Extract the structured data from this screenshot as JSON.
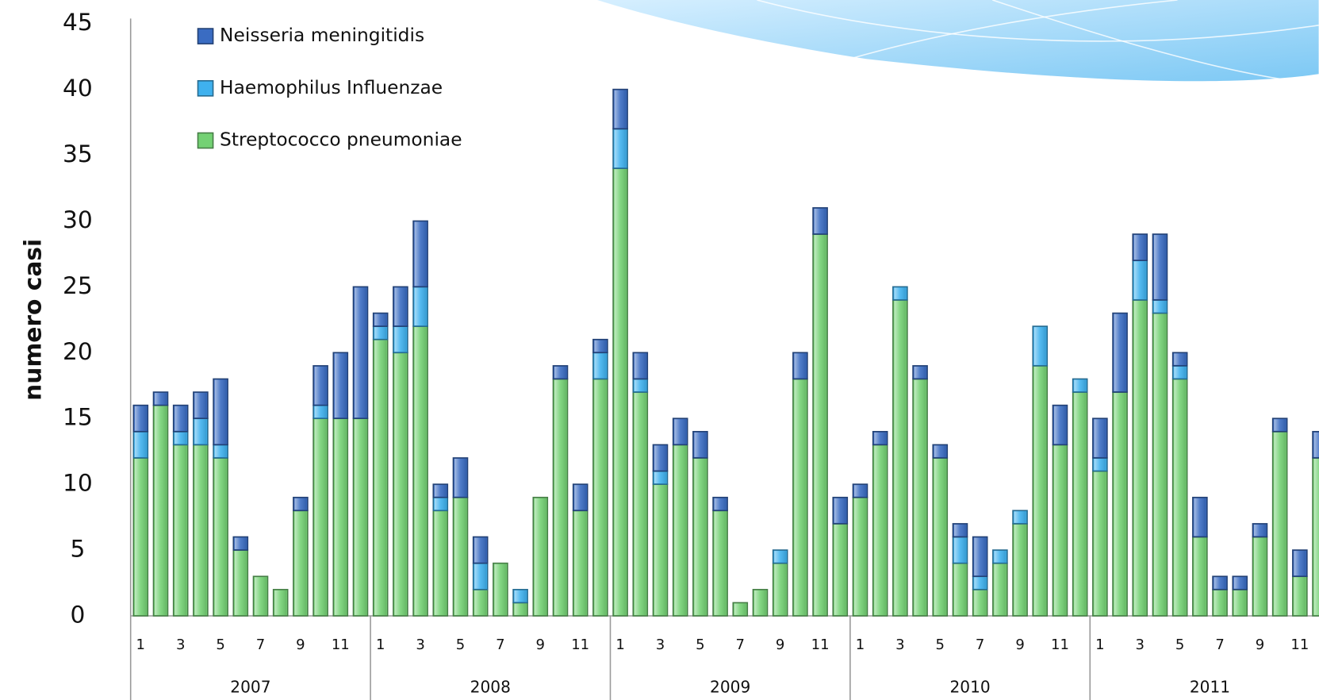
{
  "chart_data": {
    "type": "stacked-bar",
    "y_axis_label": "numero casi",
    "categories": [
      "1",
      null,
      "3",
      null,
      "5",
      null,
      "7",
      null,
      "9",
      null,
      "11",
      null,
      "1",
      null,
      "3",
      null,
      "5",
      null,
      "7",
      null,
      "9",
      null,
      "11",
      null,
      "1",
      null,
      "3",
      null,
      "5",
      null,
      "7",
      null,
      "9",
      null,
      "11",
      null,
      "1",
      null,
      "3",
      null,
      "5",
      null,
      "7",
      null,
      "9",
      null,
      "11",
      null,
      "1",
      null,
      "3",
      null,
      "5",
      null,
      "7",
      null,
      "9",
      null,
      "11",
      null
    ],
    "groups": [
      "2007",
      "2008",
      "2009",
      "2010",
      "2011"
    ],
    "ylim": [
      0,
      45
    ],
    "yticks": [
      0,
      5,
      10,
      15,
      20,
      25,
      30,
      35,
      40,
      45
    ],
    "grid": false,
    "legend": "top-left",
    "series": [
      {
        "name": "Streptococco pneumoniae",
        "color": "#74d174",
        "values": [
          12,
          16,
          13,
          13,
          12,
          5,
          3,
          2,
          8,
          15,
          15,
          15,
          21,
          20,
          22,
          8,
          9,
          2,
          4,
          1,
          9,
          18,
          8,
          18,
          34,
          17,
          10,
          13,
          12,
          8,
          1,
          2,
          4,
          18,
          29,
          7,
          9,
          13,
          24,
          18,
          12,
          4,
          2,
          4,
          7,
          19,
          13,
          17,
          11,
          17,
          24,
          23,
          18,
          6,
          2,
          2,
          6,
          14,
          3,
          12
        ]
      },
      {
        "name": "Haemophilus Influenzae",
        "color": "#3fb1ee",
        "values": [
          2,
          0,
          1,
          2,
          1,
          0,
          0,
          0,
          0,
          1,
          0,
          0,
          1,
          2,
          3,
          1,
          0,
          2,
          0,
          1,
          0,
          0,
          0,
          2,
          3,
          1,
          1,
          0,
          0,
          0,
          0,
          0,
          1,
          0,
          0,
          0,
          0,
          0,
          1,
          0,
          0,
          2,
          1,
          1,
          1,
          3,
          0,
          1,
          1,
          0,
          3,
          1,
          1,
          0,
          0,
          0,
          0,
          0,
          0,
          0
        ]
      },
      {
        "name": "Neisseria meningitidis",
        "color": "#3a6cc2",
        "values": [
          2,
          1,
          2,
          2,
          5,
          1,
          0,
          0,
          1,
          3,
          5,
          10,
          1,
          3,
          5,
          1,
          3,
          2,
          0,
          0,
          0,
          1,
          2,
          1,
          3,
          2,
          2,
          2,
          2,
          1,
          0,
          0,
          0,
          2,
          2,
          2,
          1,
          1,
          0,
          1,
          1,
          1,
          3,
          0,
          0,
          0,
          3,
          0,
          3,
          6,
          2,
          5,
          1,
          3,
          1,
          1,
          1,
          1,
          2,
          2
        ]
      }
    ]
  }
}
